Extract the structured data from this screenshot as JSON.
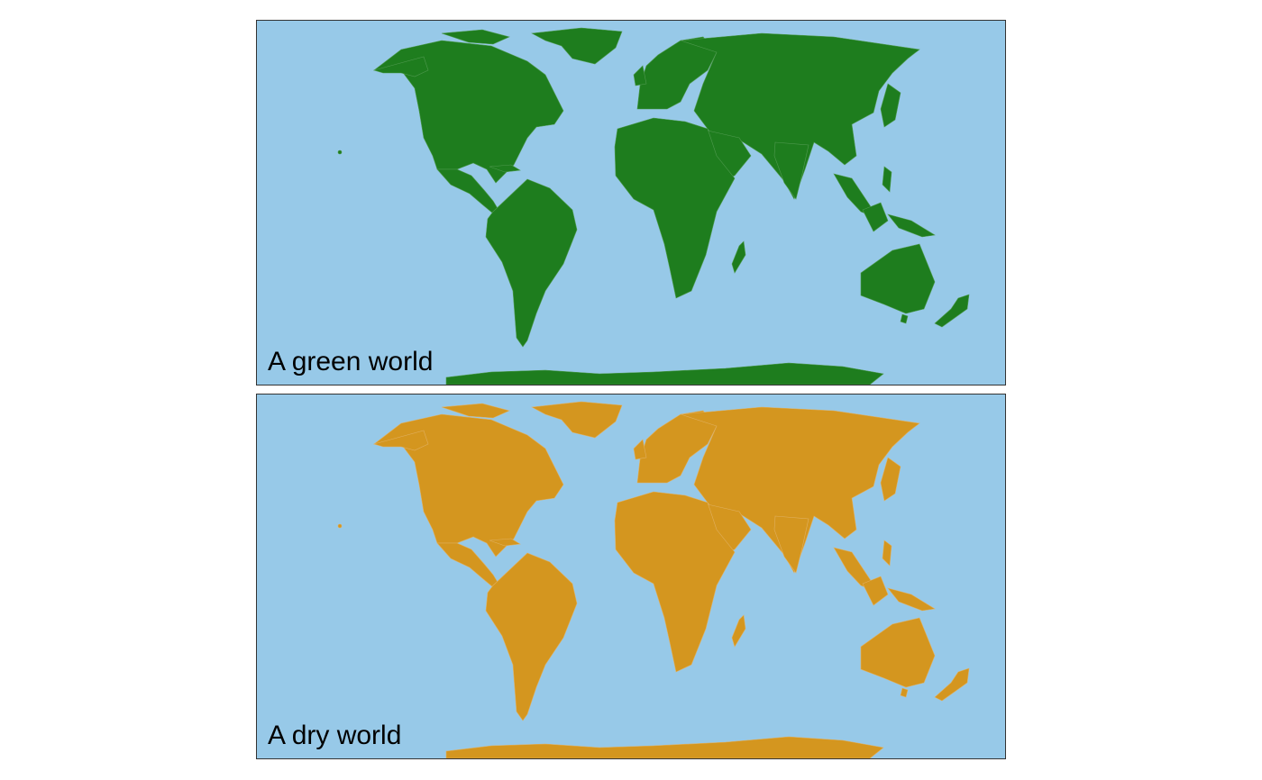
{
  "maps": [
    {
      "title": "A green world",
      "ocean_color": "#97c9e8",
      "land_color": "#1e7d1e",
      "border_color": "#4f9a4f"
    },
    {
      "title": "A dry world",
      "ocean_color": "#97c9e8",
      "land_color": "#d4961f",
      "border_color": "#e0b060"
    }
  ]
}
